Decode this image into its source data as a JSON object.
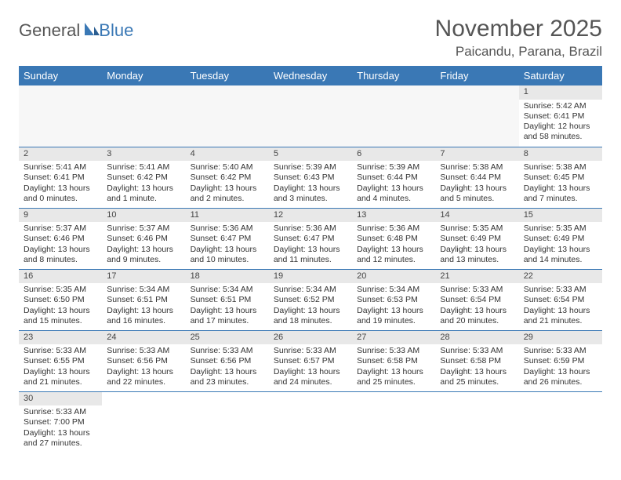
{
  "logo": {
    "part1": "General",
    "part2": "Blue"
  },
  "title": "November 2025",
  "location": "Paicandu, Parana, Brazil",
  "colors": {
    "header_bg": "#3a78b5",
    "header_text": "#ffffff",
    "daynum_bg": "#e8e8e8",
    "border": "#3a78b5",
    "title_color": "#555555",
    "text_color": "#333333"
  },
  "weekdays": [
    "Sunday",
    "Monday",
    "Tuesday",
    "Wednesday",
    "Thursday",
    "Friday",
    "Saturday"
  ],
  "weeks": [
    [
      null,
      null,
      null,
      null,
      null,
      null,
      {
        "n": "1",
        "sr": "Sunrise: 5:42 AM",
        "ss": "Sunset: 6:41 PM",
        "dl": "Daylight: 12 hours and 58 minutes."
      }
    ],
    [
      {
        "n": "2",
        "sr": "Sunrise: 5:41 AM",
        "ss": "Sunset: 6:41 PM",
        "dl": "Daylight: 13 hours and 0 minutes."
      },
      {
        "n": "3",
        "sr": "Sunrise: 5:41 AM",
        "ss": "Sunset: 6:42 PM",
        "dl": "Daylight: 13 hours and 1 minute."
      },
      {
        "n": "4",
        "sr": "Sunrise: 5:40 AM",
        "ss": "Sunset: 6:42 PM",
        "dl": "Daylight: 13 hours and 2 minutes."
      },
      {
        "n": "5",
        "sr": "Sunrise: 5:39 AM",
        "ss": "Sunset: 6:43 PM",
        "dl": "Daylight: 13 hours and 3 minutes."
      },
      {
        "n": "6",
        "sr": "Sunrise: 5:39 AM",
        "ss": "Sunset: 6:44 PM",
        "dl": "Daylight: 13 hours and 4 minutes."
      },
      {
        "n": "7",
        "sr": "Sunrise: 5:38 AM",
        "ss": "Sunset: 6:44 PM",
        "dl": "Daylight: 13 hours and 5 minutes."
      },
      {
        "n": "8",
        "sr": "Sunrise: 5:38 AM",
        "ss": "Sunset: 6:45 PM",
        "dl": "Daylight: 13 hours and 7 minutes."
      }
    ],
    [
      {
        "n": "9",
        "sr": "Sunrise: 5:37 AM",
        "ss": "Sunset: 6:46 PM",
        "dl": "Daylight: 13 hours and 8 minutes."
      },
      {
        "n": "10",
        "sr": "Sunrise: 5:37 AM",
        "ss": "Sunset: 6:46 PM",
        "dl": "Daylight: 13 hours and 9 minutes."
      },
      {
        "n": "11",
        "sr": "Sunrise: 5:36 AM",
        "ss": "Sunset: 6:47 PM",
        "dl": "Daylight: 13 hours and 10 minutes."
      },
      {
        "n": "12",
        "sr": "Sunrise: 5:36 AM",
        "ss": "Sunset: 6:47 PM",
        "dl": "Daylight: 13 hours and 11 minutes."
      },
      {
        "n": "13",
        "sr": "Sunrise: 5:36 AM",
        "ss": "Sunset: 6:48 PM",
        "dl": "Daylight: 13 hours and 12 minutes."
      },
      {
        "n": "14",
        "sr": "Sunrise: 5:35 AM",
        "ss": "Sunset: 6:49 PM",
        "dl": "Daylight: 13 hours and 13 minutes."
      },
      {
        "n": "15",
        "sr": "Sunrise: 5:35 AM",
        "ss": "Sunset: 6:49 PM",
        "dl": "Daylight: 13 hours and 14 minutes."
      }
    ],
    [
      {
        "n": "16",
        "sr": "Sunrise: 5:35 AM",
        "ss": "Sunset: 6:50 PM",
        "dl": "Daylight: 13 hours and 15 minutes."
      },
      {
        "n": "17",
        "sr": "Sunrise: 5:34 AM",
        "ss": "Sunset: 6:51 PM",
        "dl": "Daylight: 13 hours and 16 minutes."
      },
      {
        "n": "18",
        "sr": "Sunrise: 5:34 AM",
        "ss": "Sunset: 6:51 PM",
        "dl": "Daylight: 13 hours and 17 minutes."
      },
      {
        "n": "19",
        "sr": "Sunrise: 5:34 AM",
        "ss": "Sunset: 6:52 PM",
        "dl": "Daylight: 13 hours and 18 minutes."
      },
      {
        "n": "20",
        "sr": "Sunrise: 5:34 AM",
        "ss": "Sunset: 6:53 PM",
        "dl": "Daylight: 13 hours and 19 minutes."
      },
      {
        "n": "21",
        "sr": "Sunrise: 5:33 AM",
        "ss": "Sunset: 6:54 PM",
        "dl": "Daylight: 13 hours and 20 minutes."
      },
      {
        "n": "22",
        "sr": "Sunrise: 5:33 AM",
        "ss": "Sunset: 6:54 PM",
        "dl": "Daylight: 13 hours and 21 minutes."
      }
    ],
    [
      {
        "n": "23",
        "sr": "Sunrise: 5:33 AM",
        "ss": "Sunset: 6:55 PM",
        "dl": "Daylight: 13 hours and 21 minutes."
      },
      {
        "n": "24",
        "sr": "Sunrise: 5:33 AM",
        "ss": "Sunset: 6:56 PM",
        "dl": "Daylight: 13 hours and 22 minutes."
      },
      {
        "n": "25",
        "sr": "Sunrise: 5:33 AM",
        "ss": "Sunset: 6:56 PM",
        "dl": "Daylight: 13 hours and 23 minutes."
      },
      {
        "n": "26",
        "sr": "Sunrise: 5:33 AM",
        "ss": "Sunset: 6:57 PM",
        "dl": "Daylight: 13 hours and 24 minutes."
      },
      {
        "n": "27",
        "sr": "Sunrise: 5:33 AM",
        "ss": "Sunset: 6:58 PM",
        "dl": "Daylight: 13 hours and 25 minutes."
      },
      {
        "n": "28",
        "sr": "Sunrise: 5:33 AM",
        "ss": "Sunset: 6:58 PM",
        "dl": "Daylight: 13 hours and 25 minutes."
      },
      {
        "n": "29",
        "sr": "Sunrise: 5:33 AM",
        "ss": "Sunset: 6:59 PM",
        "dl": "Daylight: 13 hours and 26 minutes."
      }
    ],
    [
      {
        "n": "30",
        "sr": "Sunrise: 5:33 AM",
        "ss": "Sunset: 7:00 PM",
        "dl": "Daylight: 13 hours and 27 minutes."
      },
      null,
      null,
      null,
      null,
      null,
      null
    ]
  ]
}
